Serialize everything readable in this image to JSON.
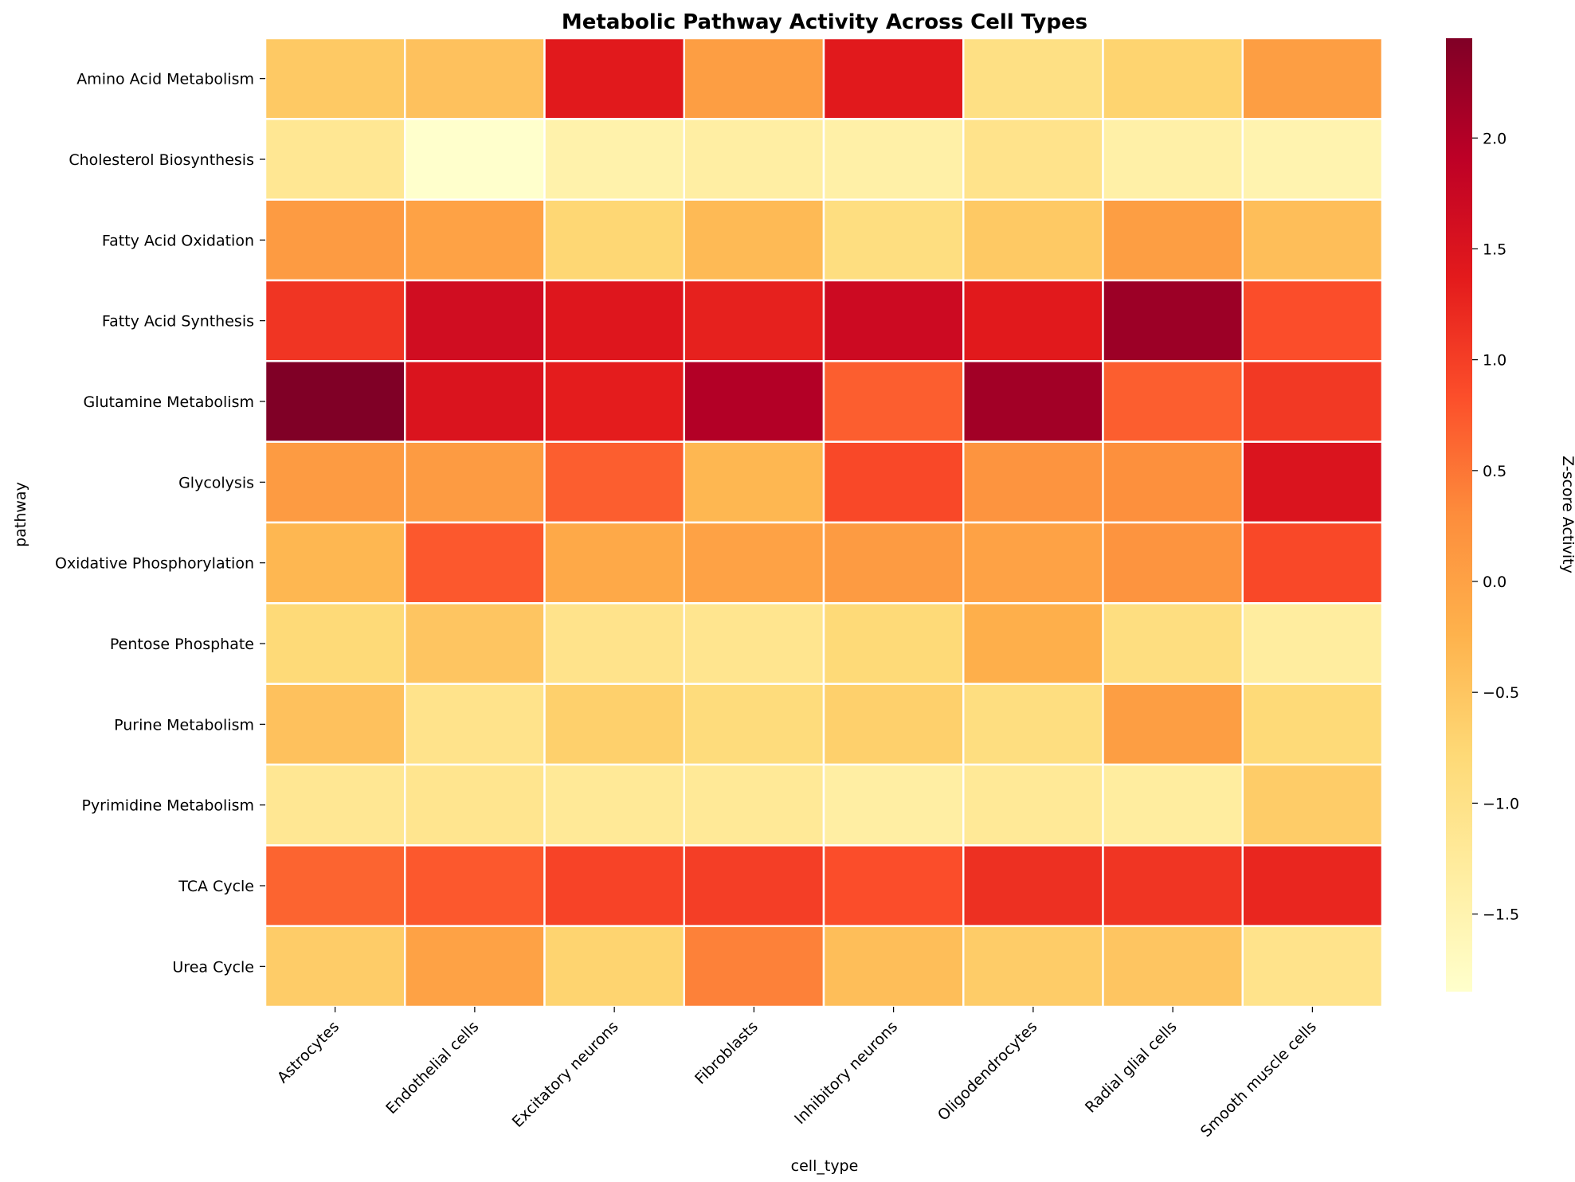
{
  "chart_data": {
    "type": "heatmap",
    "title": "Metabolic Pathway Activity Across Cell Types",
    "xlabel": "cell_type",
    "ylabel": "pathway",
    "colorbar_label": "Z-score Activity",
    "colormap": "YlOrRd",
    "colormap_stops": [
      "#ffffcc",
      "#ffeda0",
      "#fed976",
      "#feb24c",
      "#fd8d3c",
      "#fc4e2a",
      "#e31a1c",
      "#bd0026",
      "#800026"
    ],
    "value_range": [
      -1.85,
      2.45
    ],
    "colorbar_ticks": [
      2.0,
      1.5,
      1.0,
      0.5,
      0.0,
      -0.5,
      -1.0,
      -1.5
    ],
    "colorbar_tick_labels": [
      "2.0",
      "1.5",
      "1.0",
      "0.5",
      "0.0",
      "−0.5",
      "−1.0",
      "−1.5"
    ],
    "columns": [
      "Astrocytes",
      "Endothelial cells",
      "Excitatory neurons",
      "Fibroblasts",
      "Inhibitory neurons",
      "Oligodendrocytes",
      "Radial glial cells",
      "Smooth muscle cells"
    ],
    "rows": [
      "Amino Acid Metabolism",
      "Cholesterol Biosynthesis",
      "Fatty Acid Oxidation",
      "Fatty Acid Synthesis",
      "Glutamine Metabolism",
      "Glycolysis",
      "Oxidative Phosphorylation",
      "Pentose Phosphate",
      "Purine Metabolism",
      "Pyrimidine Metabolism",
      "TCA Cycle",
      "Urea Cycle"
    ],
    "values": [
      [
        -0.55,
        -0.45,
        1.4,
        0.05,
        1.4,
        -0.95,
        -0.7,
        0.05
      ],
      [
        -1.15,
        -1.85,
        -1.45,
        -1.35,
        -1.4,
        -1.05,
        -1.4,
        -1.5
      ],
      [
        0.1,
        0.0,
        -0.75,
        -0.35,
        -0.9,
        -0.55,
        0.05,
        -0.4
      ],
      [
        1.1,
        1.65,
        1.45,
        1.3,
        1.7,
        1.4,
        2.2,
        0.85
      ],
      [
        2.45,
        1.5,
        1.35,
        2.0,
        0.7,
        2.15,
        0.7,
        1.05
      ],
      [
        0.1,
        0.1,
        0.7,
        -0.3,
        0.9,
        0.2,
        0.25,
        1.5
      ],
      [
        -0.3,
        0.75,
        -0.1,
        0.0,
        0.1,
        0.0,
        0.2,
        0.9
      ],
      [
        -0.8,
        -0.5,
        -1.05,
        -1.1,
        -0.8,
        -0.2,
        -0.9,
        -1.3
      ],
      [
        -0.45,
        -1.05,
        -0.65,
        -0.85,
        -0.65,
        -0.9,
        0.05,
        -0.8
      ],
      [
        -1.15,
        -1.1,
        -1.2,
        -1.2,
        -1.35,
        -1.2,
        -1.3,
        -0.6
      ],
      [
        0.65,
        0.75,
        0.95,
        1.0,
        0.85,
        1.15,
        1.1,
        1.25
      ],
      [
        -0.6,
        0.0,
        -0.7,
        0.4,
        -0.4,
        -0.6,
        -0.5,
        -1.05
      ]
    ]
  }
}
